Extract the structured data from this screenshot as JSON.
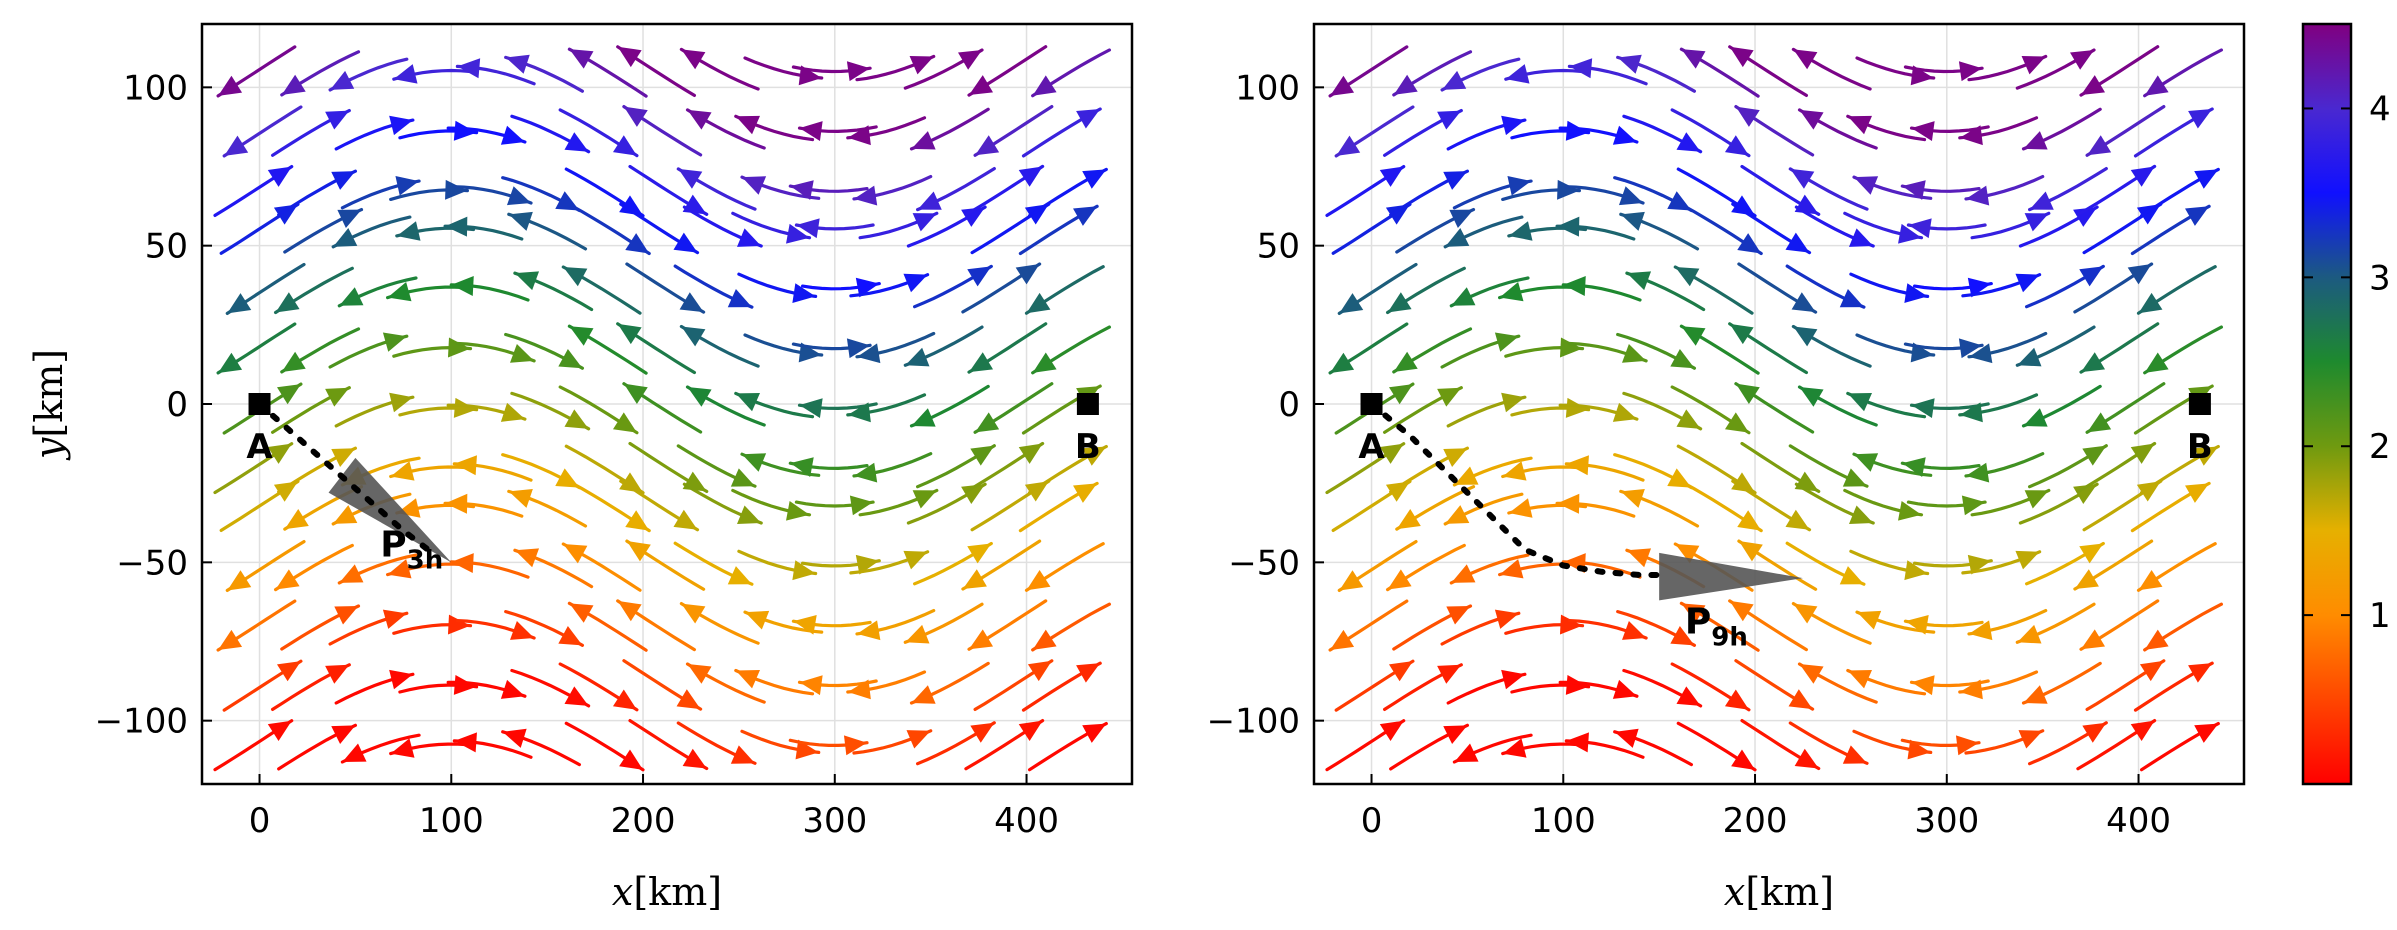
{
  "chart_data": [
    {
      "type": "vector_field",
      "panel": "left",
      "xlabel_var": "x",
      "xlabel_unit": "[km]",
      "ylabel_var": "y",
      "ylabel_unit": "[km]",
      "xlim": [
        -30,
        455
      ],
      "ylim": [
        -120,
        120
      ],
      "xticks": [
        0,
        100,
        200,
        300,
        400
      ],
      "yticks": [
        -100,
        -50,
        0,
        50,
        100
      ],
      "xtick_labels": [
        "0",
        "100",
        "200",
        "300",
        "400"
      ],
      "ytick_labels": [
        "−100",
        "−50",
        "0",
        "50",
        "100"
      ],
      "grid": true,
      "field": {
        "x_range": [
          0,
          420
        ],
        "y_range": [
          -105,
          105
        ],
        "nx": 15,
        "ny": 13,
        "meander_amplitude_km": 25,
        "meander_wavelength_km": 400
      },
      "points": [
        {
          "label": "A",
          "x": 0,
          "y": 0
        },
        {
          "label": "B",
          "x": 432,
          "y": 0
        }
      ],
      "track": {
        "x": [
          0,
          15,
          30,
          45,
          60,
          75,
          90
        ],
        "y": [
          0,
          -8,
          -16,
          -24,
          -32,
          -40,
          -47
        ]
      },
      "position": {
        "label": "P",
        "sub": "3h",
        "x": 100,
        "y": -50
      },
      "cone": {
        "apex": [
          100,
          -50
        ],
        "base": [
          [
            50,
            -17
          ],
          [
            36,
            -28
          ]
        ]
      }
    },
    {
      "type": "vector_field",
      "panel": "right",
      "xlabel_var": "x",
      "xlabel_unit": "[km]",
      "ylabel_var": "",
      "ylabel_unit": "",
      "xlim": [
        -30,
        455
      ],
      "ylim": [
        -120,
        120
      ],
      "xticks": [
        0,
        100,
        200,
        300,
        400
      ],
      "yticks": [
        -100,
        -50,
        0,
        50,
        100
      ],
      "xtick_labels": [
        "0",
        "100",
        "200",
        "300",
        "400"
      ],
      "ytick_labels": [
        "−100",
        "−50",
        "0",
        "50",
        "100"
      ],
      "grid": true,
      "field": {
        "x_range": [
          0,
          420
        ],
        "y_range": [
          -105,
          105
        ],
        "nx": 15,
        "ny": 13,
        "meander_amplitude_km": 25,
        "meander_wavelength_km": 400
      },
      "points": [
        {
          "label": "A",
          "x": 0,
          "y": 0
        },
        {
          "label": "B",
          "x": 432,
          "y": 0
        }
      ],
      "track": {
        "x": [
          0,
          20,
          40,
          60,
          80,
          100,
          120,
          140,
          155
        ],
        "y": [
          0,
          -10,
          -22,
          -34,
          -46,
          -51,
          -53,
          -54,
          -54
        ]
      },
      "position": {
        "label": "P",
        "sub": "9h",
        "x": 165,
        "y": -68
      },
      "cone": {
        "apex": [
          225,
          -55
        ],
        "base": [
          [
            150,
            -47
          ],
          [
            150,
            -62
          ]
        ]
      }
    }
  ],
  "colorbar": {
    "vmin": 0,
    "vmax": 4.5,
    "ticks": [
      1,
      2,
      3,
      4
    ],
    "tick_labels": [
      "1",
      "2",
      "3",
      "4"
    ],
    "stops": [
      {
        "value": 0,
        "color": "#ff0000"
      },
      {
        "value": 1,
        "color": "#ff8c00"
      },
      {
        "value": 1.5,
        "color": "#e6b000"
      },
      {
        "value": 2,
        "color": "#6f9a10"
      },
      {
        "value": 2.5,
        "color": "#1e8a2e"
      },
      {
        "value": 3,
        "color": "#1c5a80"
      },
      {
        "value": 3.5,
        "color": "#1010ff"
      },
      {
        "value": 4,
        "color": "#4a28d0"
      },
      {
        "value": 4.5,
        "color": "#800080"
      }
    ]
  }
}
